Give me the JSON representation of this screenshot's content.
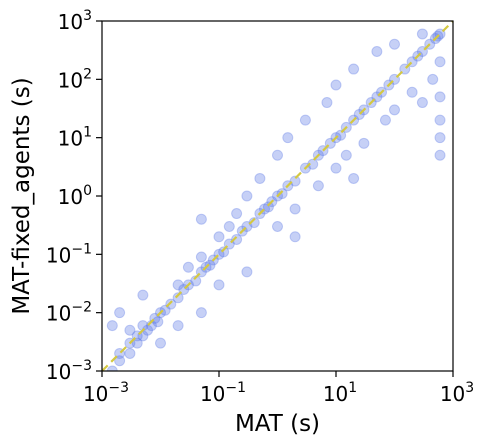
{
  "chart_data": {
    "type": "scatter",
    "title": "",
    "xlabel": "MAT (s)",
    "ylabel": "MAT-fixed_agents (s)",
    "xscale": "log",
    "yscale": "log",
    "xlim": [
      0.001,
      1000
    ],
    "ylim": [
      0.001,
      1000
    ],
    "grid": false,
    "legend": "none",
    "x_ticks": [
      {
        "value": 0.001,
        "base": "10",
        "exp": "−3"
      },
      {
        "value": 0.1,
        "base": "10",
        "exp": "−1"
      },
      {
        "value": 10,
        "base": "10",
        "exp": "1"
      },
      {
        "value": 1000,
        "base": "10",
        "exp": "3"
      }
    ],
    "y_ticks": [
      {
        "value": 0.001,
        "base": "10",
        "exp": "−3"
      },
      {
        "value": 0.01,
        "base": "10",
        "exp": "−2"
      },
      {
        "value": 0.1,
        "base": "10",
        "exp": "−1"
      },
      {
        "value": 1,
        "base": "10",
        "exp": "0"
      },
      {
        "value": 10,
        "base": "10",
        "exp": "1"
      },
      {
        "value": 100,
        "base": "10",
        "exp": "2"
      },
      {
        "value": 1000,
        "base": "10",
        "exp": "3"
      }
    ],
    "series": [
      {
        "marker_color": "#5b78e6",
        "marker_alpha": 0.07,
        "points": [
          [
            0.0015,
            0.001
          ],
          [
            0.002,
            0.002
          ],
          [
            0.002,
            0.0015
          ],
          [
            0.003,
            0.002
          ],
          [
            0.003,
            0.003
          ],
          [
            0.003,
            0.005
          ],
          [
            0.004,
            0.003
          ],
          [
            0.004,
            0.004
          ],
          [
            0.005,
            0.004
          ],
          [
            0.005,
            0.006
          ],
          [
            0.006,
            0.005
          ],
          [
            0.007,
            0.006
          ],
          [
            0.008,
            0.008
          ],
          [
            0.009,
            0.007
          ],
          [
            0.01,
            0.01
          ],
          [
            0.012,
            0.011
          ],
          [
            0.015,
            0.014
          ],
          [
            0.02,
            0.018
          ],
          [
            0.02,
            0.03
          ],
          [
            0.025,
            0.025
          ],
          [
            0.03,
            0.03
          ],
          [
            0.03,
            0.06
          ],
          [
            0.04,
            0.035
          ],
          [
            0.05,
            0.05
          ],
          [
            0.05,
            0.09
          ],
          [
            0.06,
            0.06
          ],
          [
            0.07,
            0.065
          ],
          [
            0.08,
            0.08
          ],
          [
            0.1,
            0.1
          ],
          [
            0.1,
            0.2
          ],
          [
            0.12,
            0.11
          ],
          [
            0.15,
            0.15
          ],
          [
            0.15,
            0.3
          ],
          [
            0.2,
            0.18
          ],
          [
            0.2,
            0.5
          ],
          [
            0.25,
            0.25
          ],
          [
            0.3,
            0.3
          ],
          [
            0.3,
            1.0
          ],
          [
            0.4,
            0.35
          ],
          [
            0.5,
            0.5
          ],
          [
            0.5,
            2.0
          ],
          [
            0.6,
            0.6
          ],
          [
            0.7,
            0.65
          ],
          [
            0.8,
            0.8
          ],
          [
            1.0,
            1.0
          ],
          [
            1.0,
            5.0
          ],
          [
            1.0,
            0.3
          ],
          [
            1.2,
            1.1
          ],
          [
            1.5,
            1.5
          ],
          [
            1.5,
            10
          ],
          [
            2.0,
            1.8
          ],
          [
            2.0,
            0.6
          ],
          [
            3.0,
            3.0
          ],
          [
            3.0,
            20
          ],
          [
            4.0,
            3.5
          ],
          [
            5.0,
            5.0
          ],
          [
            5.0,
            1.5
          ],
          [
            6.0,
            6.0
          ],
          [
            7.0,
            40
          ],
          [
            8.0,
            8.0
          ],
          [
            10,
            10
          ],
          [
            10,
            80
          ],
          [
            10,
            3
          ],
          [
            12,
            11
          ],
          [
            15,
            15
          ],
          [
            15,
            5
          ],
          [
            20,
            20
          ],
          [
            20,
            150
          ],
          [
            25,
            25
          ],
          [
            30,
            30
          ],
          [
            30,
            8
          ],
          [
            40,
            40
          ],
          [
            50,
            50
          ],
          [
            50,
            300
          ],
          [
            60,
            60
          ],
          [
            70,
            20
          ],
          [
            80,
            80
          ],
          [
            100,
            100
          ],
          [
            100,
            400
          ],
          [
            100,
            30
          ],
          [
            150,
            150
          ],
          [
            200,
            200
          ],
          [
            200,
            60
          ],
          [
            250,
            250
          ],
          [
            300,
            300
          ],
          [
            300,
            600
          ],
          [
            400,
            400
          ],
          [
            450,
            100
          ],
          [
            500,
            500
          ],
          [
            550,
            550
          ],
          [
            600,
            600
          ],
          [
            600,
            50
          ],
          [
            600,
            20
          ],
          [
            600,
            200
          ],
          [
            600,
            10
          ],
          [
            600,
            5
          ],
          [
            0.002,
            0.01
          ],
          [
            0.01,
            0.003
          ],
          [
            0.05,
            0.01
          ],
          [
            0.3,
            0.05
          ],
          [
            2.0,
            0.2
          ],
          [
            20,
            2
          ],
          [
            0.05,
            0.4
          ],
          [
            0.005,
            0.02
          ],
          [
            0.0015,
            0.006
          ],
          [
            0.02,
            0.006
          ],
          [
            0.1,
            0.03
          ],
          [
            300,
            40
          ]
        ]
      }
    ],
    "reference_line": {
      "label": "",
      "from": [
        0.001,
        0.001
      ],
      "to": [
        1000,
        1000
      ],
      "color": "#d4c842",
      "style": "dashed"
    }
  }
}
